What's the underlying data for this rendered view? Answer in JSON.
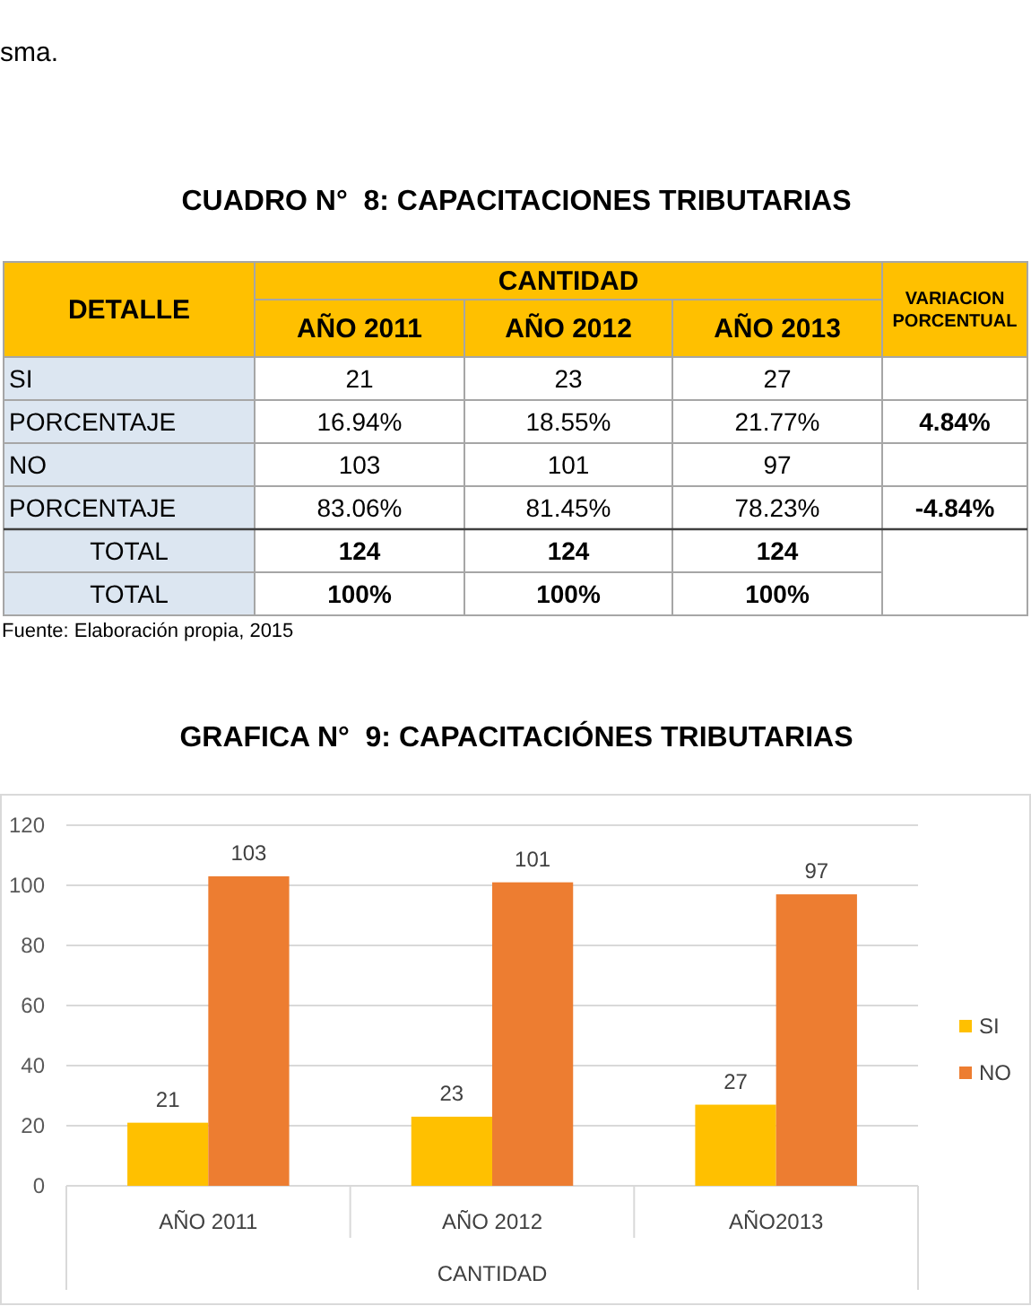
{
  "chart_data": [
    {
      "type": "other",
      "title": "CUADRO N°  8: CAPACITACIONES TRIBUTARIAS",
      "annotations": [
        "sma.",
        "DETALLE",
        "CANTIDAD",
        "VARIACION PORCENTUAL",
        "AÑO 2011",
        "AÑO 2012",
        "AÑO 2013",
        "SI",
        "21",
        "23",
        "27",
        "PORCENTAJE",
        "16.94%",
        "18.55%",
        "21.77%",
        "4.84%",
        "NO",
        "103",
        "101",
        "97",
        "PORCENTAJE",
        "83.06%",
        "81.45%",
        "78.23%",
        "-4.84%",
        "TOTAL",
        "124",
        "124",
        "124",
        "TOTAL",
        "100%",
        "100%",
        "100%",
        "Fuente: Elaboración propia, 2015"
      ]
    },
    {
      "type": "bar",
      "title": "GRAFICA N°  9: CAPACITACIÓNES TRIBUTARIAS",
      "xlabel": "CANTIDAD",
      "categories": [
        "AÑO 2011",
        "AÑO 2012",
        "AÑO2013"
      ],
      "series": [
        {
          "name": "SI",
          "color": "#ffc000",
          "values": [
            21,
            23,
            27
          ]
        },
        {
          "name": "NO",
          "color": "#ed7d31",
          "values": [
            103,
            101,
            97
          ]
        }
      ],
      "ylim": [
        0,
        120
      ],
      "yticks": [
        0,
        20,
        40,
        60,
        80,
        100,
        120
      ],
      "grid": "y",
      "legend": "right",
      "data_labels": true
    }
  ]
}
